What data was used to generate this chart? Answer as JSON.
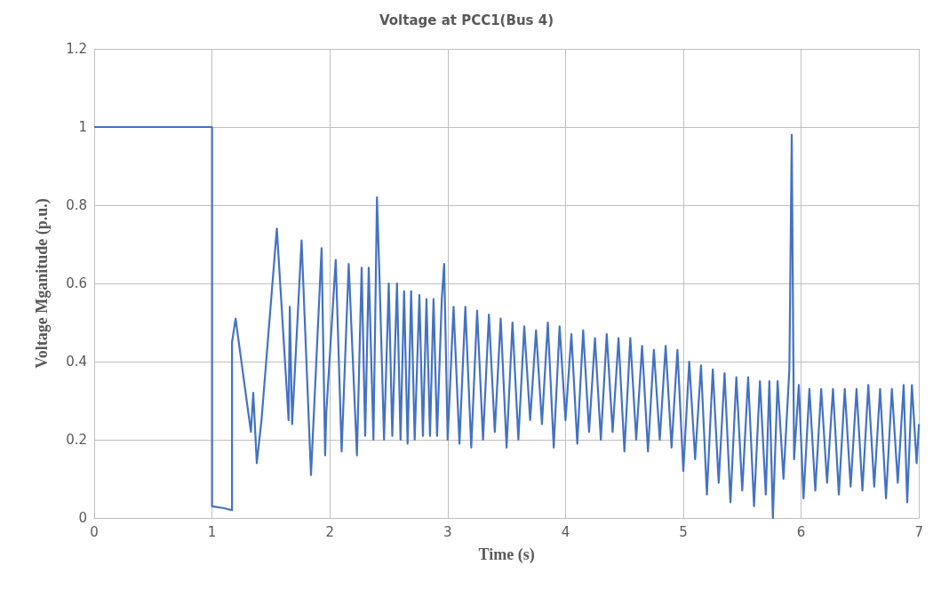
{
  "chart_data": {
    "type": "line",
    "title": "Voltage at PCC1(Bus 4)",
    "xlabel": "Time (s)",
    "ylabel": "Voltage Mganitude (p.u.)",
    "xlim": [
      0,
      7
    ],
    "xticks": [
      0,
      1,
      2,
      3,
      4,
      5,
      6,
      7
    ],
    "ylim": [
      0,
      1.2
    ],
    "yticks": [
      0,
      0.2,
      0.4,
      0.6,
      0.8,
      1,
      {
        "value": 1.2,
        "label": "1.2"
      }
    ],
    "grid": true,
    "marker": "none",
    "line_style": "solid",
    "series": [
      {
        "color": "#4472c4",
        "x": [
          0,
          1,
          1.0,
          1.1,
          1.17,
          1.17,
          1.2,
          1.33,
          1.35,
          1.38,
          1.42,
          1.55,
          1.65,
          1.66,
          1.68,
          1.76,
          1.84,
          1.93,
          1.96,
          1.97,
          2.05,
          2.1,
          2.16,
          2.23,
          2.27,
          2.3,
          2.33,
          2.37,
          2.4,
          2.42,
          2.46,
          2.5,
          2.53,
          2.57,
          2.6,
          2.63,
          2.66,
          2.69,
          2.72,
          2.76,
          2.79,
          2.82,
          2.85,
          2.88,
          2.91,
          2.95,
          2.97,
          3.0,
          3.05,
          3.1,
          3.15,
          3.2,
          3.25,
          3.3,
          3.35,
          3.4,
          3.45,
          3.5,
          3.55,
          3.6,
          3.65,
          3.7,
          3.75,
          3.8,
          3.85,
          3.9,
          3.95,
          4.0,
          4.05,
          4.1,
          4.15,
          4.2,
          4.25,
          4.3,
          4.35,
          4.4,
          4.45,
          4.5,
          4.55,
          4.6,
          4.65,
          4.7,
          4.75,
          4.8,
          4.85,
          4.9,
          4.95,
          5.0,
          5.05,
          5.1,
          5.15,
          5.2,
          5.25,
          5.3,
          5.35,
          5.4,
          5.45,
          5.5,
          5.55,
          5.6,
          5.65,
          5.7,
          5.73,
          5.76,
          5.8,
          5.85,
          5.9,
          5.92,
          5.94,
          5.98,
          6.02,
          6.07,
          6.12,
          6.17,
          6.22,
          6.27,
          6.32,
          6.37,
          6.42,
          6.47,
          6.52,
          6.57,
          6.62,
          6.67,
          6.72,
          6.77,
          6.82,
          6.87,
          6.9,
          6.94,
          6.98,
          7.0
        ],
        "values": [
          1,
          1,
          0.03,
          0.025,
          0.02,
          0.45,
          0.51,
          0.22,
          0.32,
          0.14,
          0.25,
          0.74,
          0.25,
          0.54,
          0.24,
          0.71,
          0.11,
          0.69,
          0.16,
          0.27,
          0.66,
          0.17,
          0.65,
          0.16,
          0.64,
          0.21,
          0.64,
          0.2,
          0.82,
          0.63,
          0.2,
          0.6,
          0.21,
          0.6,
          0.2,
          0.58,
          0.19,
          0.58,
          0.2,
          0.57,
          0.21,
          0.56,
          0.21,
          0.56,
          0.21,
          0.56,
          0.65,
          0.2,
          0.54,
          0.19,
          0.54,
          0.18,
          0.53,
          0.2,
          0.52,
          0.22,
          0.51,
          0.18,
          0.5,
          0.2,
          0.49,
          0.25,
          0.48,
          0.24,
          0.5,
          0.18,
          0.49,
          0.25,
          0.47,
          0.19,
          0.48,
          0.22,
          0.46,
          0.2,
          0.47,
          0.22,
          0.46,
          0.17,
          0.46,
          0.2,
          0.44,
          0.17,
          0.43,
          0.2,
          0.44,
          0.18,
          0.43,
          0.12,
          0.4,
          0.15,
          0.39,
          0.06,
          0.38,
          0.09,
          0.37,
          0.04,
          0.36,
          0.07,
          0.36,
          0.03,
          0.35,
          0.06,
          0.35,
          0.0,
          0.35,
          0.1,
          0.38,
          0.98,
          0.15,
          0.34,
          0.05,
          0.33,
          0.07,
          0.33,
          0.09,
          0.33,
          0.06,
          0.33,
          0.08,
          0.33,
          0.07,
          0.34,
          0.08,
          0.33,
          0.05,
          0.33,
          0.09,
          0.34,
          0.04,
          0.34,
          0.14,
          0.24
        ]
      }
    ]
  }
}
